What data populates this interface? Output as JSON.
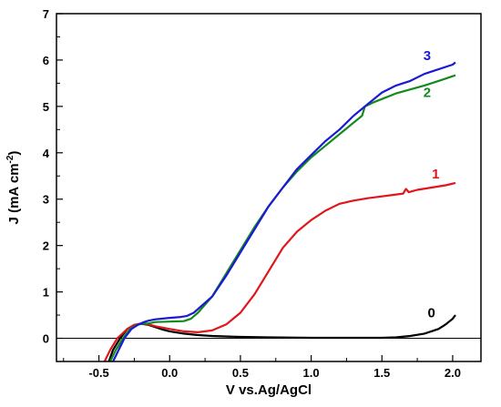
{
  "chart_data": {
    "type": "line",
    "xlabel": "V vs.Ag/AgCl",
    "ylabel": {
      "base": "J (mA cm",
      "sup": "-2",
      "end": ")"
    },
    "xlim": [
      -0.8,
      2.2
    ],
    "ylim": [
      -0.5,
      7
    ],
    "xticks": [
      -0.5,
      0.0,
      0.5,
      1.0,
      1.5,
      2.0
    ],
    "xtick_labels": [
      "-0.5",
      "0.0",
      "0.5",
      "1.0",
      "1.5",
      "2.0"
    ],
    "yticks": [
      0,
      1,
      2,
      3,
      4,
      5,
      6,
      7
    ],
    "ytick_labels": [
      "0",
      "1",
      "2",
      "3",
      "4",
      "5",
      "6",
      "7"
    ],
    "zero_line": true,
    "grid": false,
    "series": [
      {
        "label": "0",
        "color": "#000000",
        "label_at": [
          1.85,
          0.45
        ],
        "points": [
          [
            -0.43,
            -0.5
          ],
          [
            -0.4,
            -0.25
          ],
          [
            -0.35,
            0.0
          ],
          [
            -0.3,
            0.2
          ],
          [
            -0.25,
            0.29
          ],
          [
            -0.2,
            0.31
          ],
          [
            -0.15,
            0.29
          ],
          [
            -0.1,
            0.24
          ],
          [
            -0.05,
            0.19
          ],
          [
            0.0,
            0.15
          ],
          [
            0.1,
            0.1
          ],
          [
            0.2,
            0.07
          ],
          [
            0.3,
            0.05
          ],
          [
            0.5,
            0.03
          ],
          [
            0.7,
            0.02
          ],
          [
            1.0,
            0.01
          ],
          [
            1.3,
            0.01
          ],
          [
            1.5,
            0.01
          ],
          [
            1.6,
            0.02
          ],
          [
            1.7,
            0.05
          ],
          [
            1.8,
            0.1
          ],
          [
            1.9,
            0.2
          ],
          [
            1.95,
            0.3
          ],
          [
            2.0,
            0.42
          ],
          [
            2.02,
            0.5
          ]
        ]
      },
      {
        "label": "1",
        "color": "#e0161b",
        "label_at": [
          1.88,
          3.45
        ],
        "points": [
          [
            -0.46,
            -0.5
          ],
          [
            -0.42,
            -0.25
          ],
          [
            -0.37,
            0.0
          ],
          [
            -0.3,
            0.2
          ],
          [
            -0.25,
            0.29
          ],
          [
            -0.2,
            0.32
          ],
          [
            -0.15,
            0.3
          ],
          [
            -0.1,
            0.26
          ],
          [
            0.0,
            0.2
          ],
          [
            0.1,
            0.15
          ],
          [
            0.2,
            0.13
          ],
          [
            0.3,
            0.17
          ],
          [
            0.4,
            0.3
          ],
          [
            0.5,
            0.55
          ],
          [
            0.6,
            0.95
          ],
          [
            0.7,
            1.45
          ],
          [
            0.8,
            1.95
          ],
          [
            0.9,
            2.3
          ],
          [
            1.0,
            2.55
          ],
          [
            1.1,
            2.75
          ],
          [
            1.2,
            2.9
          ],
          [
            1.3,
            2.97
          ],
          [
            1.4,
            3.02
          ],
          [
            1.5,
            3.06
          ],
          [
            1.6,
            3.1
          ],
          [
            1.65,
            3.12
          ],
          [
            1.67,
            3.22
          ],
          [
            1.69,
            3.15
          ],
          [
            1.75,
            3.2
          ],
          [
            1.85,
            3.25
          ],
          [
            1.95,
            3.3
          ],
          [
            2.02,
            3.35
          ]
        ]
      },
      {
        "label": "2",
        "color": "#138a1c",
        "label_at": [
          1.82,
          5.2
        ],
        "points": [
          [
            -0.42,
            -0.5
          ],
          [
            -0.38,
            -0.25
          ],
          [
            -0.33,
            0.0
          ],
          [
            -0.28,
            0.2
          ],
          [
            -0.23,
            0.29
          ],
          [
            -0.2,
            0.31
          ],
          [
            -0.15,
            0.32
          ],
          [
            -0.1,
            0.35
          ],
          [
            0.0,
            0.36
          ],
          [
            0.1,
            0.37
          ],
          [
            0.15,
            0.42
          ],
          [
            0.2,
            0.55
          ],
          [
            0.3,
            0.9
          ],
          [
            0.4,
            1.4
          ],
          [
            0.5,
            1.9
          ],
          [
            0.6,
            2.4
          ],
          [
            0.7,
            2.85
          ],
          [
            0.8,
            3.25
          ],
          [
            0.9,
            3.6
          ],
          [
            1.0,
            3.9
          ],
          [
            1.1,
            4.15
          ],
          [
            1.2,
            4.4
          ],
          [
            1.3,
            4.65
          ],
          [
            1.36,
            4.8
          ],
          [
            1.38,
            5.0
          ],
          [
            1.45,
            5.1
          ],
          [
            1.6,
            5.28
          ],
          [
            1.8,
            5.45
          ],
          [
            1.9,
            5.55
          ],
          [
            2.02,
            5.67
          ]
        ]
      },
      {
        "label": "3",
        "color": "#1a1ad6",
        "label_at": [
          1.82,
          6.0
        ],
        "points": [
          [
            -0.4,
            -0.5
          ],
          [
            -0.36,
            -0.25
          ],
          [
            -0.32,
            0.0
          ],
          [
            -0.27,
            0.2
          ],
          [
            -0.22,
            0.3
          ],
          [
            -0.18,
            0.35
          ],
          [
            -0.15,
            0.38
          ],
          [
            -0.1,
            0.41
          ],
          [
            0.0,
            0.44
          ],
          [
            0.08,
            0.46
          ],
          [
            0.12,
            0.48
          ],
          [
            0.17,
            0.55
          ],
          [
            0.3,
            0.9
          ],
          [
            0.4,
            1.35
          ],
          [
            0.5,
            1.85
          ],
          [
            0.6,
            2.35
          ],
          [
            0.7,
            2.85
          ],
          [
            0.8,
            3.25
          ],
          [
            0.9,
            3.65
          ],
          [
            1.0,
            3.95
          ],
          [
            1.1,
            4.25
          ],
          [
            1.2,
            4.5
          ],
          [
            1.3,
            4.8
          ],
          [
            1.4,
            5.05
          ],
          [
            1.5,
            5.3
          ],
          [
            1.6,
            5.45
          ],
          [
            1.7,
            5.55
          ],
          [
            1.8,
            5.7
          ],
          [
            1.9,
            5.8
          ],
          [
            2.0,
            5.9
          ],
          [
            2.02,
            5.95
          ]
        ]
      }
    ]
  }
}
